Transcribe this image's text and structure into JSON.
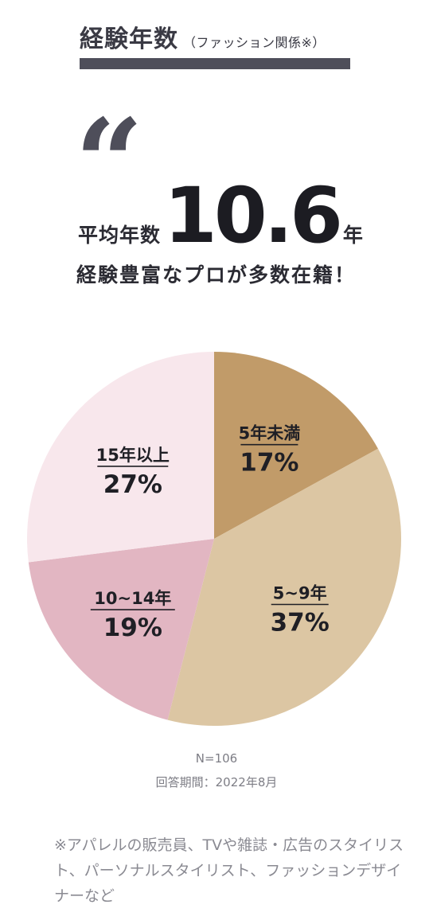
{
  "header": {
    "title": "経験年数",
    "subtitle": "（ファッション関係※）"
  },
  "quote_icon": "quote-mark-icon",
  "average": {
    "label": "平均年数",
    "value": "10.6",
    "unit": "年"
  },
  "tagline": "経験豊富なプロが多数在籍！",
  "chart_data": {
    "type": "pie",
    "title": "",
    "slices": [
      {
        "label": "5年未満",
        "value": 17,
        "value_label": "17%",
        "color": "#c19b69"
      },
      {
        "label": "5~9年",
        "value": 37,
        "value_label": "37%",
        "color": "#dcc6a3"
      },
      {
        "label": "10~14年",
        "value": 19,
        "value_label": "19%",
        "color": "#e2b6c2"
      },
      {
        "label": "15年以上",
        "value": 27,
        "value_label": "27%",
        "color": "#f8e7ec"
      }
    ],
    "start_angle_deg": 0,
    "direction": "clockwise",
    "legend": "none"
  },
  "footnote": {
    "n": "N=106",
    "period": "回答期間：2022年8月"
  },
  "note": "※アパレルの販売員、TVや雑誌・広告のスタイリスト、パーソナルスタイリスト、ファッションデザイナーなど"
}
